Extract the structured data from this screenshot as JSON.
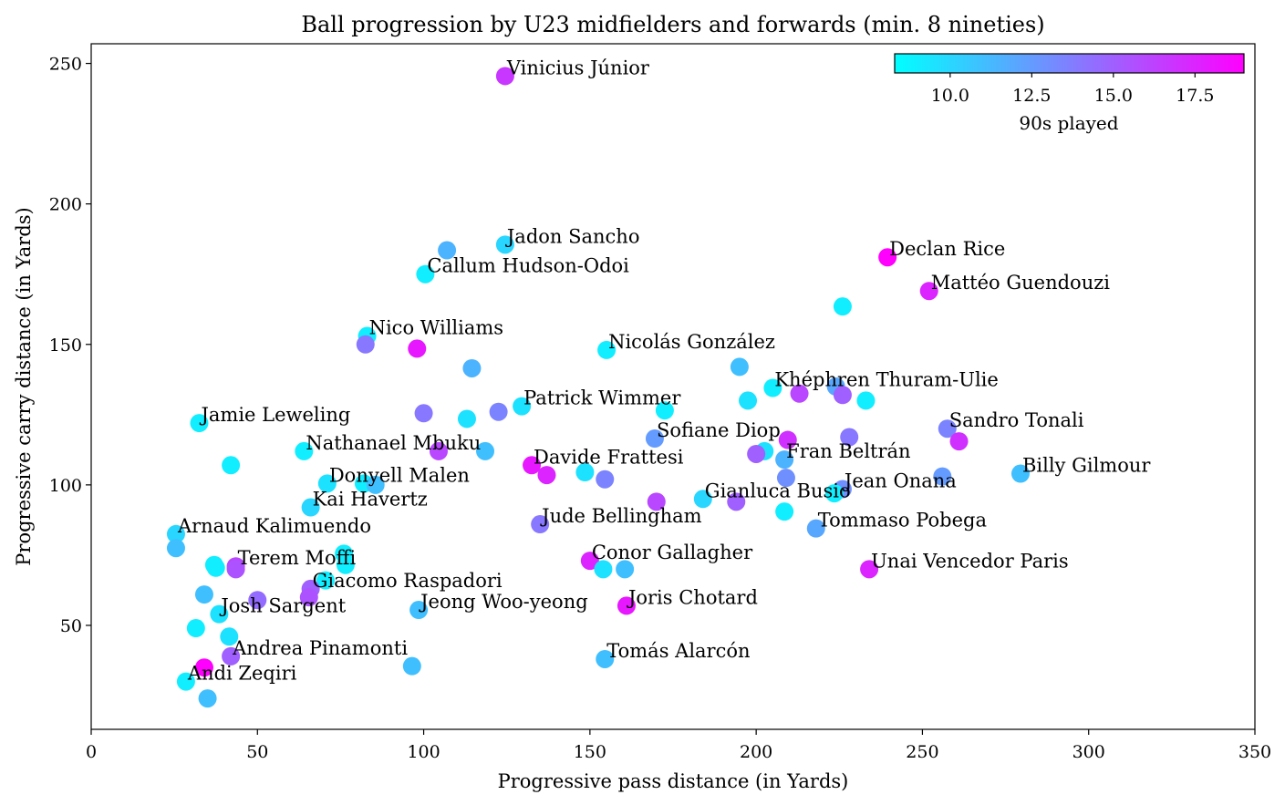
{
  "chart_data": {
    "type": "scatter",
    "title": "Ball progression by U23 midfielders and forwards (min. 8 nineties)",
    "xlabel": "Progressive pass distance (in Yards)",
    "ylabel": "Progressive carry distance (in Yards)",
    "xlim": [
      0,
      350
    ],
    "ylim": [
      13,
      257
    ],
    "xticks": [
      0,
      50,
      100,
      150,
      200,
      250,
      300,
      350
    ],
    "yticks": [
      50,
      100,
      150,
      200,
      250
    ],
    "grid": false,
    "colormap": {
      "name": "cool",
      "label": "90s played",
      "range": [
        8.3,
        19.0
      ],
      "ticks": [
        10.0,
        12.5,
        15.0,
        17.5
      ],
      "tick_labels": [
        "10.0",
        "12.5",
        "15.0",
        "17.5"
      ],
      "color_low": "#00ffff",
      "color_high": "#ff00ff",
      "placement": "top-right"
    },
    "points": [
      {
        "x": 124.5,
        "y": 245.5,
        "c": 16.7,
        "label": "Vinicius Júnior"
      },
      {
        "x": 124.5,
        "y": 185.5,
        "c": 10.0,
        "label": "Jadon Sancho"
      },
      {
        "x": 107.0,
        "y": 183.5,
        "c": 11.5,
        "label": ""
      },
      {
        "x": 100.5,
        "y": 175.0,
        "c": 9.0,
        "label": "Callum Hudson-Odoi"
      },
      {
        "x": 239.5,
        "y": 181.0,
        "c": 19.0,
        "label": "Declan Rice"
      },
      {
        "x": 252.0,
        "y": 169.0,
        "c": 17.5,
        "label": "Mattéo Guendouzi"
      },
      {
        "x": 226.0,
        "y": 163.5,
        "c": 9.0,
        "label": ""
      },
      {
        "x": 83.0,
        "y": 153.0,
        "c": 9.0,
        "label": "Nico Williams"
      },
      {
        "x": 82.5,
        "y": 150.0,
        "c": 14.0,
        "label": ""
      },
      {
        "x": 98.0,
        "y": 148.5,
        "c": 18.0,
        "label": ""
      },
      {
        "x": 155.0,
        "y": 148.0,
        "c": 9.0,
        "label": "Nicolás González"
      },
      {
        "x": 114.5,
        "y": 141.5,
        "c": 11.5,
        "label": ""
      },
      {
        "x": 195.0,
        "y": 142.0,
        "c": 11.0,
        "label": ""
      },
      {
        "x": 205.0,
        "y": 134.5,
        "c": 9.0,
        "label": "Khéphren Thuram-Ulie"
      },
      {
        "x": 213.0,
        "y": 132.5,
        "c": 16.0,
        "label": ""
      },
      {
        "x": 224.0,
        "y": 135.0,
        "c": 12.0,
        "label": ""
      },
      {
        "x": 226.0,
        "y": 132.0,
        "c": 15.0,
        "label": ""
      },
      {
        "x": 197.5,
        "y": 130.0,
        "c": 9.5,
        "label": ""
      },
      {
        "x": 233.0,
        "y": 130.0,
        "c": 9.0,
        "label": ""
      },
      {
        "x": 129.5,
        "y": 128.0,
        "c": 9.5,
        "label": "Patrick Wimmer"
      },
      {
        "x": 172.5,
        "y": 126.5,
        "c": 9.0,
        "label": ""
      },
      {
        "x": 100.0,
        "y": 125.5,
        "c": 14.0,
        "label": ""
      },
      {
        "x": 122.5,
        "y": 126.0,
        "c": 13.5,
        "label": ""
      },
      {
        "x": 113.0,
        "y": 123.5,
        "c": 9.5,
        "label": ""
      },
      {
        "x": 32.5,
        "y": 122.0,
        "c": 9.0,
        "label": "Jamie Leweling"
      },
      {
        "x": 257.5,
        "y": 120.0,
        "c": 13.5,
        "label": "Sandro Tonali"
      },
      {
        "x": 169.5,
        "y": 116.5,
        "c": 12.5,
        "label": "Sofiane Diop"
      },
      {
        "x": 228.0,
        "y": 117.0,
        "c": 14.0,
        "label": ""
      },
      {
        "x": 209.5,
        "y": 116.0,
        "c": 17.0,
        "label": ""
      },
      {
        "x": 261.0,
        "y": 115.5,
        "c": 17.0,
        "label": ""
      },
      {
        "x": 64.0,
        "y": 112.0,
        "c": 9.0,
        "label": "Nathanael Mbuku"
      },
      {
        "x": 104.5,
        "y": 112.0,
        "c": 16.0,
        "label": ""
      },
      {
        "x": 118.5,
        "y": 112.0,
        "c": 11.0,
        "label": ""
      },
      {
        "x": 202.5,
        "y": 112.0,
        "c": 9.5,
        "label": ""
      },
      {
        "x": 200.0,
        "y": 111.0,
        "c": 15.0,
        "label": ""
      },
      {
        "x": 208.5,
        "y": 109.0,
        "c": 11.5,
        "label": "Fran Beltrán"
      },
      {
        "x": 42.0,
        "y": 107.0,
        "c": 9.0,
        "label": ""
      },
      {
        "x": 132.5,
        "y": 107.0,
        "c": 18.0,
        "label": "Davide Frattesi"
      },
      {
        "x": 137.0,
        "y": 103.5,
        "c": 17.5,
        "label": ""
      },
      {
        "x": 148.5,
        "y": 104.5,
        "c": 9.5,
        "label": ""
      },
      {
        "x": 154.5,
        "y": 102.0,
        "c": 13.5,
        "label": ""
      },
      {
        "x": 209.0,
        "y": 102.5,
        "c": 13.0,
        "label": ""
      },
      {
        "x": 256.0,
        "y": 103.0,
        "c": 12.5,
        "label": ""
      },
      {
        "x": 279.5,
        "y": 104.0,
        "c": 11.0,
        "label": "Billy Gilmour"
      },
      {
        "x": 71.0,
        "y": 100.5,
        "c": 9.5,
        "label": "Donyell Malen"
      },
      {
        "x": 82.0,
        "y": 100.5,
        "c": 9.0,
        "label": ""
      },
      {
        "x": 85.5,
        "y": 100.0,
        "c": 11.0,
        "label": ""
      },
      {
        "x": 226.0,
        "y": 98.5,
        "c": 13.0,
        "label": "Jean Onana"
      },
      {
        "x": 223.5,
        "y": 97.0,
        "c": 9.0,
        "label": ""
      },
      {
        "x": 184.0,
        "y": 95.0,
        "c": 10.0,
        "label": "Gianluca Busio"
      },
      {
        "x": 170.0,
        "y": 94.0,
        "c": 16.0,
        "label": ""
      },
      {
        "x": 194.0,
        "y": 94.0,
        "c": 15.0,
        "label": ""
      },
      {
        "x": 66.0,
        "y": 92.0,
        "c": 10.0,
        "label": "Kai Havertz"
      },
      {
        "x": 208.5,
        "y": 90.5,
        "c": 9.0,
        "label": ""
      },
      {
        "x": 135.0,
        "y": 86.0,
        "c": 14.0,
        "label": "Jude Bellingham"
      },
      {
        "x": 218.0,
        "y": 84.5,
        "c": 12.0,
        "label": "Tommaso Pobega"
      },
      {
        "x": 25.5,
        "y": 82.5,
        "c": 10.0,
        "label": "Arnaud Kalimuendo"
      },
      {
        "x": 25.5,
        "y": 77.5,
        "c": 11.0,
        "label": ""
      },
      {
        "x": 76.0,
        "y": 75.5,
        "c": 9.0,
        "label": ""
      },
      {
        "x": 150.0,
        "y": 73.0,
        "c": 17.5,
        "label": "Conor Gallagher"
      },
      {
        "x": 37.0,
        "y": 71.5,
        "c": 9.0,
        "label": ""
      },
      {
        "x": 37.5,
        "y": 70.5,
        "c": 9.0,
        "label": ""
      },
      {
        "x": 43.5,
        "y": 71.0,
        "c": 16.0,
        "label": "Terem Moffi"
      },
      {
        "x": 43.5,
        "y": 70.0,
        "c": 15.5,
        "label": ""
      },
      {
        "x": 76.5,
        "y": 71.5,
        "c": 9.0,
        "label": ""
      },
      {
        "x": 154.0,
        "y": 70.0,
        "c": 9.5,
        "label": ""
      },
      {
        "x": 160.5,
        "y": 70.0,
        "c": 11.0,
        "label": ""
      },
      {
        "x": 234.0,
        "y": 70.0,
        "c": 17.5,
        "label": "Unai Vencedor Paris"
      },
      {
        "x": 70.5,
        "y": 66.0,
        "c": 9.0,
        "label": ""
      },
      {
        "x": 66.0,
        "y": 63.0,
        "c": 15.0,
        "label": "Giacomo Raspadori"
      },
      {
        "x": 34.0,
        "y": 61.0,
        "c": 11.0,
        "label": ""
      },
      {
        "x": 50.0,
        "y": 59.0,
        "c": 14.5,
        "label": ""
      },
      {
        "x": 65.5,
        "y": 60.0,
        "c": 15.5,
        "label": ""
      },
      {
        "x": 161.0,
        "y": 57.0,
        "c": 18.0,
        "label": "Joris Chotard"
      },
      {
        "x": 98.5,
        "y": 55.5,
        "c": 11.0,
        "label": "Jeong Woo-yeong"
      },
      {
        "x": 38.5,
        "y": 54.0,
        "c": 9.5,
        "label": "Josh Sargent"
      },
      {
        "x": 31.5,
        "y": 49.0,
        "c": 9.0,
        "label": ""
      },
      {
        "x": 41.5,
        "y": 46.0,
        "c": 9.5,
        "label": ""
      },
      {
        "x": 42.0,
        "y": 39.0,
        "c": 15.0,
        "label": "Andrea Pinamonti"
      },
      {
        "x": 154.5,
        "y": 38.0,
        "c": 11.0,
        "label": "Tomás Alarcón"
      },
      {
        "x": 96.5,
        "y": 35.5,
        "c": 11.0,
        "label": ""
      },
      {
        "x": 34.0,
        "y": 35.0,
        "c": 19.0,
        "label": ""
      },
      {
        "x": 28.5,
        "y": 30.0,
        "c": 9.0,
        "label": "Andi Zeqiri"
      },
      {
        "x": 35.0,
        "y": 24.0,
        "c": 11.0,
        "label": ""
      }
    ]
  }
}
